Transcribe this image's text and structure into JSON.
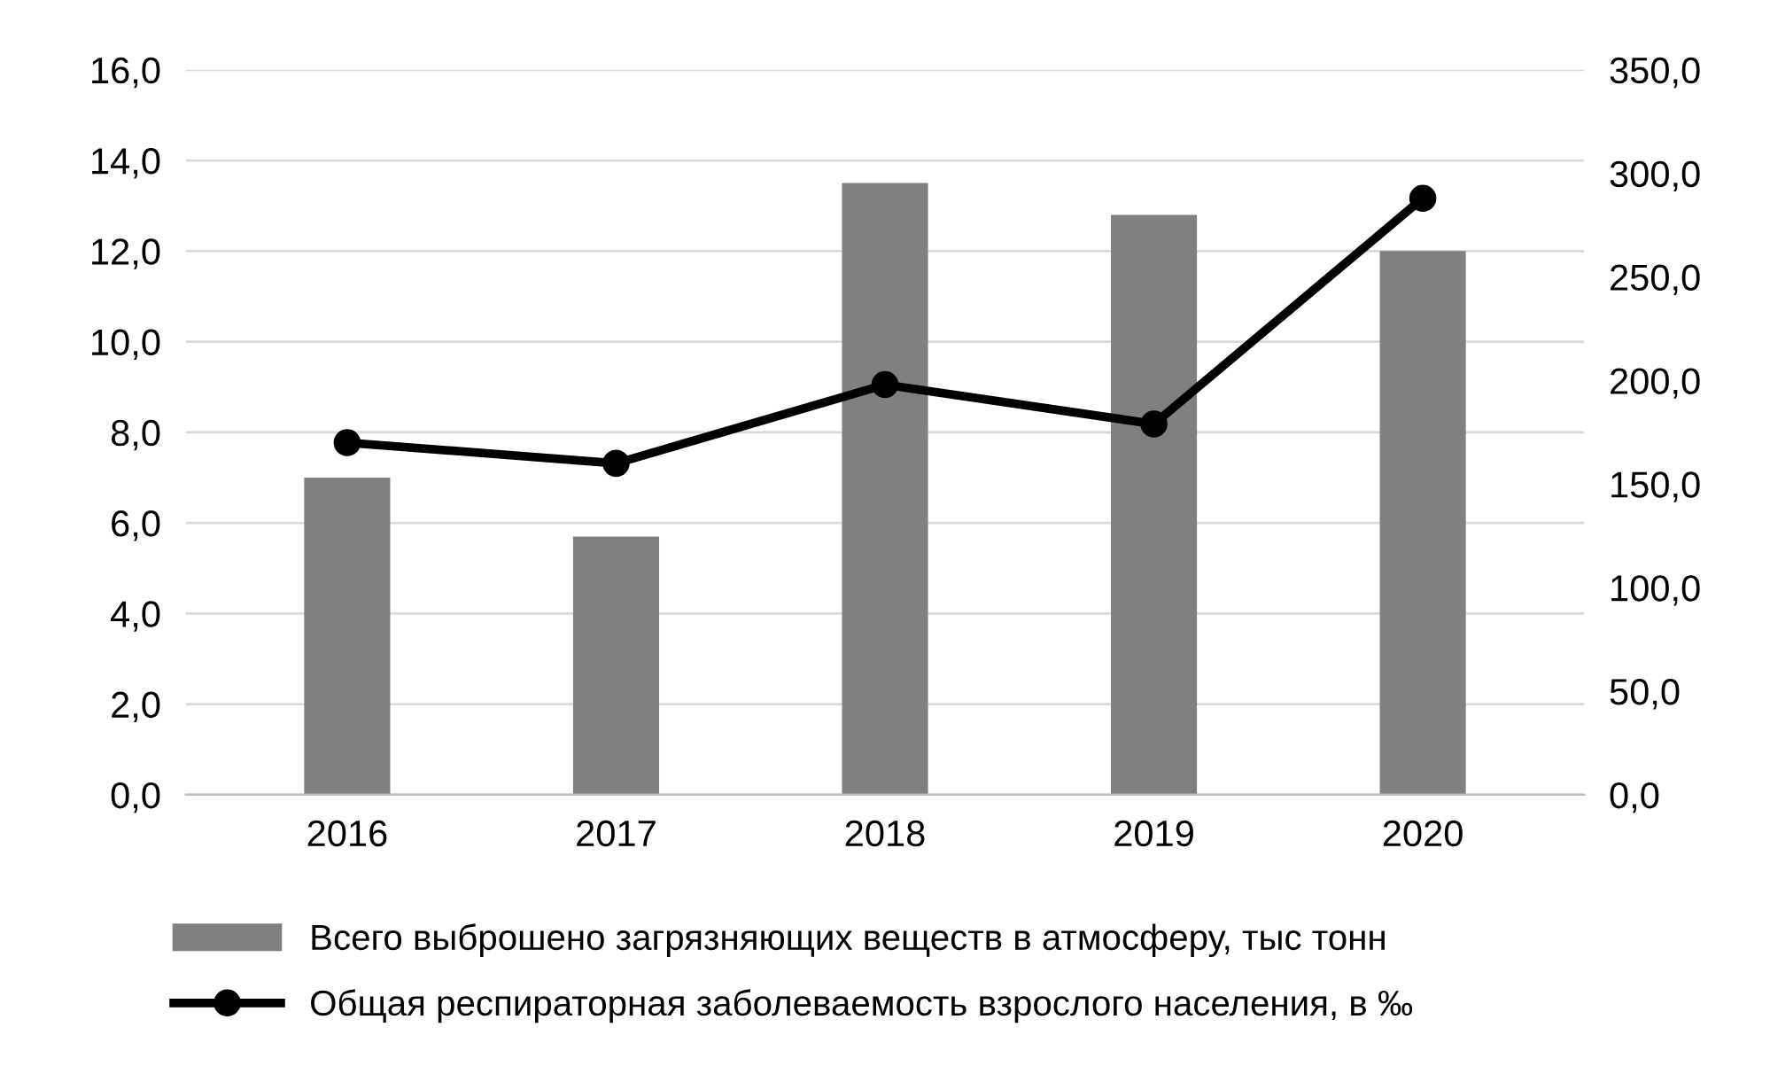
{
  "chart_data": {
    "type": "bar",
    "categories": [
      "2016",
      "2017",
      "2018",
      "2019",
      "2020"
    ],
    "series": [
      {
        "name": "Всего выброшено загрязняющих веществ в атмосферу, тыс тонн",
        "color": "#808080",
        "values": [
          7.0,
          5.7,
          13.5,
          12.8,
          12.0
        ]
      },
      {
        "name": "Общая респираторная заболеваемость взрослого населения, в ‰",
        "color": "#000000",
        "type": "line",
        "axis": "y2",
        "marker": "circle",
        "values": [
          170,
          160,
          198,
          179,
          288
        ]
      }
    ],
    "ylim": [
      0,
      16
    ],
    "yticks": [
      {
        "value": 0,
        "label": "0,0"
      },
      {
        "value": 2,
        "label": "2,0"
      },
      {
        "value": 4,
        "label": "4,0"
      },
      {
        "value": 6,
        "label": "6,0"
      },
      {
        "value": 8,
        "label": "8,0"
      },
      {
        "value": 10,
        "label": "10,0"
      },
      {
        "value": 12,
        "label": "12,0"
      },
      {
        "value": 14,
        "label": "14,0"
      },
      {
        "value": 16,
        "label": "16,0"
      }
    ],
    "y2lim": [
      0,
      350
    ],
    "y2ticks": [
      {
        "value": 0,
        "label": "0,0"
      },
      {
        "value": 50,
        "label": "50,0"
      },
      {
        "value": 100,
        "label": "100,0"
      },
      {
        "value": 150,
        "label": "150,0"
      },
      {
        "value": 200,
        "label": "200,0"
      },
      {
        "value": 250,
        "label": "250,0"
      },
      {
        "value": 300,
        "label": "300,0"
      },
      {
        "value": 350,
        "label": "350,0"
      }
    ],
    "grid": "y",
    "legend": "bottom"
  }
}
